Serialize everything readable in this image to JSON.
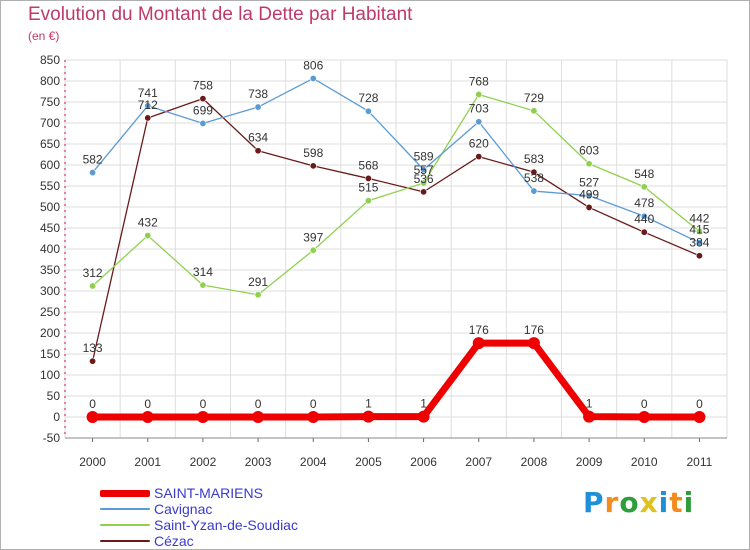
{
  "chart_data": {
    "type": "line",
    "title": "Evolution du Montant de la Dette par Habitant",
    "subtitle": "(en €)",
    "x": [
      "2000",
      "2001",
      "2002",
      "2003",
      "2004",
      "2005",
      "2006",
      "2007",
      "2008",
      "2009",
      "2010",
      "2011"
    ],
    "ylim": [
      -50,
      850
    ],
    "yticks": [
      -50,
      0,
      50,
      100,
      150,
      200,
      250,
      300,
      350,
      400,
      450,
      500,
      550,
      600,
      650,
      700,
      750,
      800,
      850
    ],
    "grid": true,
    "legend_position": "bottom-left",
    "series": [
      {
        "name": "SAINT-MARIENS",
        "color": "#ee0000",
        "values": [
          0,
          0,
          0,
          0,
          0,
          1,
          1,
          176,
          176,
          1,
          0,
          0
        ]
      },
      {
        "name": "Cavignac",
        "color": "#5b9bd5",
        "values": [
          582,
          741,
          699,
          738,
          806,
          728,
          589,
          703,
          538,
          527,
          478,
          415
        ]
      },
      {
        "name": "Saint-Yzan-de-Soudiac",
        "color": "#8fd14f",
        "values": [
          312,
          432,
          314,
          291,
          397,
          515,
          557,
          768,
          729,
          603,
          548,
          442
        ]
      },
      {
        "name": "Cézac",
        "color": "#6b1a1a",
        "values": [
          133,
          712,
          758,
          634,
          598,
          568,
          536,
          620,
          583,
          499,
          440,
          384
        ]
      }
    ]
  },
  "logo": {
    "letters": [
      "P",
      "r",
      "o",
      "x",
      "i",
      "t",
      "i"
    ],
    "colors": [
      "#1e90d8",
      "#f28c1e",
      "#2e9e3a",
      "#e0c21a",
      "#1e90d8",
      "#f28c1e",
      "#2e9e3a"
    ]
  }
}
